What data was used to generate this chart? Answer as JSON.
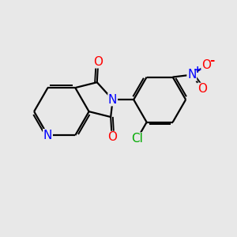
{
  "background_color": "#e8e8e8",
  "bond_color": "#000000",
  "bond_width": 1.6,
  "atom_colors": {
    "N": "#0000ff",
    "O": "#ff0000",
    "Cl": "#00aa00",
    "C": "#000000"
  },
  "font_size": 11,
  "font_size_small": 9
}
